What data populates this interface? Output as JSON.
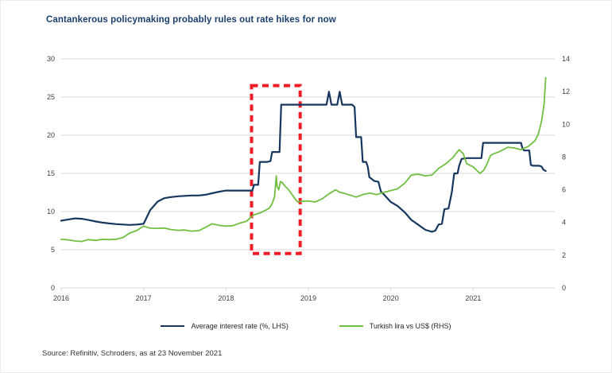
{
  "title": "Cantankerous policymaking probably rules out rate hikes for now",
  "source": "Source: Refinitiv, Schroders, as at 23 November 2021",
  "colors": {
    "title": "#1c3f6e",
    "rate_line": "#17375e",
    "lira_line": "#70bf41",
    "annotation": "#ee1c25",
    "grid": "#d9d9d9",
    "axis_text": "#3f3f3f"
  },
  "legend": [
    {
      "label": "Average interest rate (%, LHS)",
      "series": "rate"
    },
    {
      "label": "Turkish lira vs US$ (RHS)",
      "series": "lira"
    }
  ],
  "chart_data": {
    "type": "line",
    "title": "Cantankerous policymaking probably rules out rate hikes for now",
    "x_range": [
      2016,
      2021.99
    ],
    "x_ticks": [
      2016,
      2017,
      2018,
      2019,
      2020,
      2021
    ],
    "lhs_axis": {
      "label": "Average interest rate (%)",
      "min": 0,
      "max": 30,
      "ticks": [
        0,
        5,
        10,
        15,
        20,
        25,
        30
      ]
    },
    "rhs_axis": {
      "label": "Turkish lira vs US$",
      "min": 0,
      "max": 14,
      "ticks": [
        0,
        2,
        4,
        6,
        8,
        10,
        12,
        14
      ]
    },
    "grid": true,
    "legend_position": "bottom",
    "annotation_box": {
      "x0": 2018.31,
      "x1": 2018.9,
      "y0_lhs": 4.5,
      "y1_lhs": 26.5,
      "style": "dashed-red"
    },
    "series": [
      {
        "name": "Average interest rate (%, LHS)",
        "axis": "lhs",
        "color_key": "rate_line",
        "points": [
          [
            2016.0,
            8.8
          ],
          [
            2016.08,
            8.95
          ],
          [
            2016.17,
            9.1
          ],
          [
            2016.25,
            9.05
          ],
          [
            2016.33,
            8.9
          ],
          [
            2016.42,
            8.7
          ],
          [
            2016.5,
            8.55
          ],
          [
            2016.58,
            8.45
          ],
          [
            2016.67,
            8.35
          ],
          [
            2016.75,
            8.3
          ],
          [
            2016.83,
            8.25
          ],
          [
            2016.92,
            8.3
          ],
          [
            2017.0,
            8.4
          ],
          [
            2017.08,
            10.2
          ],
          [
            2017.17,
            11.3
          ],
          [
            2017.25,
            11.75
          ],
          [
            2017.33,
            11.9
          ],
          [
            2017.42,
            12.0
          ],
          [
            2017.5,
            12.05
          ],
          [
            2017.58,
            12.1
          ],
          [
            2017.67,
            12.1
          ],
          [
            2017.75,
            12.2
          ],
          [
            2017.83,
            12.4
          ],
          [
            2017.92,
            12.6
          ],
          [
            2018.0,
            12.75
          ],
          [
            2018.08,
            12.75
          ],
          [
            2018.17,
            12.75
          ],
          [
            2018.25,
            12.75
          ],
          [
            2018.32,
            12.75
          ],
          [
            2018.34,
            13.5
          ],
          [
            2018.39,
            13.5
          ],
          [
            2018.41,
            16.5
          ],
          [
            2018.5,
            16.5
          ],
          [
            2018.54,
            16.6
          ],
          [
            2018.56,
            17.8
          ],
          [
            2018.65,
            17.8
          ],
          [
            2018.67,
            24.0
          ],
          [
            2018.75,
            24.0
          ],
          [
            2018.83,
            24.0
          ],
          [
            2018.92,
            24.0
          ],
          [
            2019.0,
            24.0
          ],
          [
            2019.08,
            24.0
          ],
          [
            2019.17,
            24.0
          ],
          [
            2019.22,
            24.0
          ],
          [
            2019.25,
            25.7
          ],
          [
            2019.28,
            24.0
          ],
          [
            2019.35,
            24.0
          ],
          [
            2019.38,
            25.7
          ],
          [
            2019.41,
            24.0
          ],
          [
            2019.5,
            24.0
          ],
          [
            2019.53,
            24.0
          ],
          [
            2019.56,
            23.7
          ],
          [
            2019.58,
            19.75
          ],
          [
            2019.64,
            19.75
          ],
          [
            2019.66,
            16.5
          ],
          [
            2019.7,
            16.5
          ],
          [
            2019.72,
            15.9
          ],
          [
            2019.74,
            14.5
          ],
          [
            2019.8,
            14.0
          ],
          [
            2019.85,
            13.9
          ],
          [
            2019.88,
            12.6
          ],
          [
            2019.92,
            12.2
          ],
          [
            2020.0,
            11.25
          ],
          [
            2020.08,
            10.75
          ],
          [
            2020.17,
            9.9
          ],
          [
            2020.25,
            8.9
          ],
          [
            2020.33,
            8.3
          ],
          [
            2020.42,
            7.6
          ],
          [
            2020.5,
            7.35
          ],
          [
            2020.54,
            7.5
          ],
          [
            2020.58,
            8.3
          ],
          [
            2020.62,
            8.4
          ],
          [
            2020.65,
            10.3
          ],
          [
            2020.7,
            10.4
          ],
          [
            2020.74,
            12.5
          ],
          [
            2020.77,
            15.0
          ],
          [
            2020.81,
            15.0
          ],
          [
            2020.83,
            16.0
          ],
          [
            2020.86,
            16.9
          ],
          [
            2020.92,
            17.0
          ],
          [
            2021.0,
            17.0
          ],
          [
            2021.05,
            17.0
          ],
          [
            2021.1,
            17.0
          ],
          [
            2021.12,
            19.0
          ],
          [
            2021.2,
            19.0
          ],
          [
            2021.3,
            19.0
          ],
          [
            2021.4,
            19.0
          ],
          [
            2021.5,
            19.0
          ],
          [
            2021.58,
            19.0
          ],
          [
            2021.6,
            18.2
          ],
          [
            2021.62,
            18.0
          ],
          [
            2021.68,
            18.0
          ],
          [
            2021.7,
            16.1
          ],
          [
            2021.73,
            16.0
          ],
          [
            2021.8,
            16.0
          ],
          [
            2021.83,
            15.9
          ],
          [
            2021.85,
            15.5
          ],
          [
            2021.88,
            15.3
          ]
        ]
      },
      {
        "name": "Turkish lira vs US$ (RHS)",
        "axis": "rhs",
        "color_key": "lira_line",
        "points": [
          [
            2016.0,
            2.97
          ],
          [
            2016.08,
            2.94
          ],
          [
            2016.17,
            2.87
          ],
          [
            2016.25,
            2.84
          ],
          [
            2016.33,
            2.95
          ],
          [
            2016.42,
            2.9
          ],
          [
            2016.5,
            2.97
          ],
          [
            2016.58,
            2.95
          ],
          [
            2016.67,
            2.98
          ],
          [
            2016.75,
            3.08
          ],
          [
            2016.83,
            3.35
          ],
          [
            2016.92,
            3.52
          ],
          [
            2017.0,
            3.77
          ],
          [
            2017.08,
            3.65
          ],
          [
            2017.17,
            3.64
          ],
          [
            2017.25,
            3.66
          ],
          [
            2017.33,
            3.57
          ],
          [
            2017.42,
            3.52
          ],
          [
            2017.5,
            3.54
          ],
          [
            2017.58,
            3.47
          ],
          [
            2017.67,
            3.5
          ],
          [
            2017.75,
            3.7
          ],
          [
            2017.83,
            3.92
          ],
          [
            2017.92,
            3.82
          ],
          [
            2018.0,
            3.77
          ],
          [
            2018.08,
            3.8
          ],
          [
            2018.17,
            3.96
          ],
          [
            2018.25,
            4.08
          ],
          [
            2018.33,
            4.45
          ],
          [
            2018.42,
            4.6
          ],
          [
            2018.5,
            4.8
          ],
          [
            2018.53,
            4.9
          ],
          [
            2018.56,
            5.15
          ],
          [
            2018.59,
            5.6
          ],
          [
            2018.61,
            6.85
          ],
          [
            2018.62,
            6.2
          ],
          [
            2018.64,
            6.0
          ],
          [
            2018.66,
            6.5
          ],
          [
            2018.68,
            6.45
          ],
          [
            2018.72,
            6.2
          ],
          [
            2018.75,
            6.05
          ],
          [
            2018.79,
            5.8
          ],
          [
            2018.83,
            5.5
          ],
          [
            2018.87,
            5.25
          ],
          [
            2018.92,
            5.3
          ],
          [
            2019.0,
            5.32
          ],
          [
            2019.08,
            5.25
          ],
          [
            2019.17,
            5.45
          ],
          [
            2019.25,
            5.75
          ],
          [
            2019.33,
            6.0
          ],
          [
            2019.38,
            5.85
          ],
          [
            2019.42,
            5.8
          ],
          [
            2019.5,
            5.68
          ],
          [
            2019.58,
            5.55
          ],
          [
            2019.67,
            5.72
          ],
          [
            2019.75,
            5.8
          ],
          [
            2019.83,
            5.7
          ],
          [
            2019.92,
            5.85
          ],
          [
            2020.0,
            5.95
          ],
          [
            2020.08,
            6.05
          ],
          [
            2020.17,
            6.4
          ],
          [
            2020.25,
            6.9
          ],
          [
            2020.33,
            6.95
          ],
          [
            2020.42,
            6.85
          ],
          [
            2020.5,
            6.9
          ],
          [
            2020.58,
            7.3
          ],
          [
            2020.67,
            7.6
          ],
          [
            2020.75,
            7.95
          ],
          [
            2020.83,
            8.45
          ],
          [
            2020.88,
            8.2
          ],
          [
            2020.92,
            7.6
          ],
          [
            2021.0,
            7.4
          ],
          [
            2021.08,
            7.0
          ],
          [
            2021.13,
            7.2
          ],
          [
            2021.17,
            7.6
          ],
          [
            2021.21,
            8.1
          ],
          [
            2021.25,
            8.2
          ],
          [
            2021.33,
            8.35
          ],
          [
            2021.42,
            8.6
          ],
          [
            2021.5,
            8.55
          ],
          [
            2021.58,
            8.45
          ],
          [
            2021.67,
            8.65
          ],
          [
            2021.75,
            9.0
          ],
          [
            2021.79,
            9.4
          ],
          [
            2021.83,
            10.2
          ],
          [
            2021.86,
            11.2
          ],
          [
            2021.88,
            12.85
          ]
        ]
      }
    ]
  }
}
